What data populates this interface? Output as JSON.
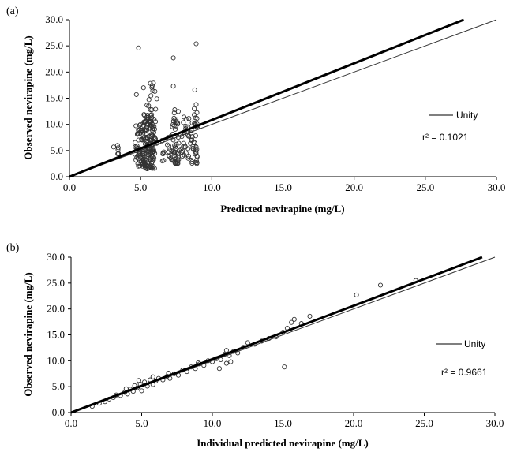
{
  "chart_data": [
    {
      "panel_label": "(a)",
      "type": "scatter",
      "xlabel": "Predicted nevirapine (mg/L)",
      "ylabel": "Observed nevirapine (mg/L)",
      "xlim": [
        0,
        30
      ],
      "ylim": [
        0,
        30
      ],
      "x_ticks": [
        "0.0",
        "5.0",
        "10.0",
        "15.0",
        "20.0",
        "25.0",
        "30.0"
      ],
      "y_ticks": [
        "0.0",
        "5.0",
        "10.0",
        "15.0",
        "20.0",
        "25.0",
        "30.0"
      ],
      "legend": [
        {
          "name": "Unity",
          "placement": "right"
        }
      ],
      "annotation": "r² = 0.1021",
      "grid": false,
      "unity_line": [
        [
          0,
          0
        ],
        [
          30,
          30
        ]
      ],
      "regression_line": [
        [
          0,
          0
        ],
        [
          27.7,
          30
        ]
      ],
      "clusters": [
        {
          "x_range": [
            3.0,
            3.6
          ],
          "y_range": [
            4.0,
            6.0
          ],
          "n": 6
        },
        {
          "x_range": [
            4.6,
            5.4
          ],
          "y_range": [
            2.0,
            10.5
          ],
          "n": 70
        },
        {
          "x_range": [
            5.2,
            6.0
          ],
          "y_range": [
            1.5,
            12.0
          ],
          "n": 110
        },
        {
          "x_range": [
            5.4,
            6.2
          ],
          "y_range": [
            6.0,
            18.5
          ],
          "n": 30
        },
        {
          "x_range": [
            6.4,
            7.2
          ],
          "y_range": [
            3.0,
            8.0
          ],
          "n": 20
        },
        {
          "x_range": [
            7.2,
            7.7
          ],
          "y_range": [
            2.5,
            12.5
          ],
          "n": 45
        },
        {
          "x_range": [
            7.7,
            8.4
          ],
          "y_range": [
            3.5,
            11.5
          ],
          "n": 30
        },
        {
          "x_range": [
            8.5,
            9.0
          ],
          "y_range": [
            2.5,
            13.5
          ],
          "n": 40
        }
      ],
      "points": [
        [
          4.85,
          24.6
        ],
        [
          7.3,
          22.7
        ],
        [
          8.9,
          25.4
        ],
        [
          7.3,
          17.3
        ],
        [
          8.8,
          16.6
        ],
        [
          5.9,
          17.9
        ],
        [
          5.2,
          17.0
        ],
        [
          8.9,
          13.8
        ],
        [
          7.4,
          12.8
        ],
        [
          4.7,
          15.7
        ]
      ]
    },
    {
      "panel_label": "(b)",
      "type": "scatter",
      "xlabel": "Individual predicted nevirapine (mg/L)",
      "ylabel": "Observed nevirapine (mg/L)",
      "xlim": [
        0,
        30
      ],
      "ylim": [
        0,
        30
      ],
      "x_ticks": [
        "0.0",
        "5.0",
        "10.0",
        "15.0",
        "20.0",
        "25.0",
        "30.0"
      ],
      "y_ticks": [
        "0.0",
        "5.0",
        "10.0",
        "15.0",
        "20.0",
        "25.0",
        "30.0"
      ],
      "legend": [
        {
          "name": "Unity",
          "placement": "right"
        }
      ],
      "annotation": "r² = 0.9661",
      "grid": false,
      "unity_line": [
        [
          0,
          0
        ],
        [
          30,
          30
        ]
      ],
      "regression_line": [
        [
          0,
          0
        ],
        [
          29.1,
          30
        ]
      ],
      "points": [
        [
          1.5,
          1.2
        ],
        [
          2.0,
          1.8
        ],
        [
          2.4,
          2.1
        ],
        [
          2.7,
          2.6
        ],
        [
          3.0,
          2.9
        ],
        [
          3.2,
          3.4
        ],
        [
          3.5,
          3.3
        ],
        [
          3.8,
          3.9
        ],
        [
          4.0,
          3.6
        ],
        [
          4.2,
          4.5
        ],
        [
          4.4,
          4.1
        ],
        [
          4.5,
          5.2
        ],
        [
          4.7,
          4.8
        ],
        [
          4.9,
          5.5
        ],
        [
          5.0,
          4.2
        ],
        [
          5.2,
          5.9
        ],
        [
          5.4,
          5.1
        ],
        [
          5.6,
          6.3
        ],
        [
          5.8,
          5.4
        ],
        [
          6.0,
          6.1
        ],
        [
          6.2,
          6.6
        ],
        [
          6.5,
          6.3
        ],
        [
          6.8,
          7.0
        ],
        [
          7.0,
          6.6
        ],
        [
          7.3,
          7.5
        ],
        [
          7.6,
          7.2
        ],
        [
          7.9,
          8.2
        ],
        [
          8.2,
          7.9
        ],
        [
          8.5,
          8.8
        ],
        [
          8.8,
          8.5
        ],
        [
          9.1,
          9.4
        ],
        [
          9.4,
          9.1
        ],
        [
          9.7,
          10.0
        ],
        [
          10.0,
          9.8
        ],
        [
          10.3,
          10.4
        ],
        [
          10.6,
          10.2
        ],
        [
          10.9,
          11.3
        ],
        [
          11.2,
          11.0
        ],
        [
          11.5,
          11.8
        ],
        [
          11.8,
          11.5
        ],
        [
          10.5,
          8.5
        ],
        [
          11.0,
          9.5
        ],
        [
          11.3,
          9.8
        ],
        [
          12.5,
          13.5
        ],
        [
          13.0,
          13.2
        ],
        [
          13.5,
          13.8
        ],
        [
          14.0,
          14.3
        ],
        [
          14.5,
          14.6
        ],
        [
          15.0,
          15.5
        ],
        [
          15.3,
          16.3
        ],
        [
          15.6,
          17.4
        ],
        [
          15.8,
          18.0
        ],
        [
          16.3,
          17.2
        ],
        [
          16.9,
          18.6
        ],
        [
          15.1,
          8.8
        ],
        [
          20.2,
          22.7
        ],
        [
          21.9,
          24.6
        ],
        [
          24.4,
          25.5
        ],
        [
          11.0,
          12.0
        ],
        [
          9.0,
          9.6
        ],
        [
          6.9,
          7.6
        ],
        [
          5.8,
          6.9
        ],
        [
          4.8,
          6.2
        ],
        [
          3.9,
          4.6
        ],
        [
          12.2,
          12.6
        ]
      ]
    }
  ]
}
